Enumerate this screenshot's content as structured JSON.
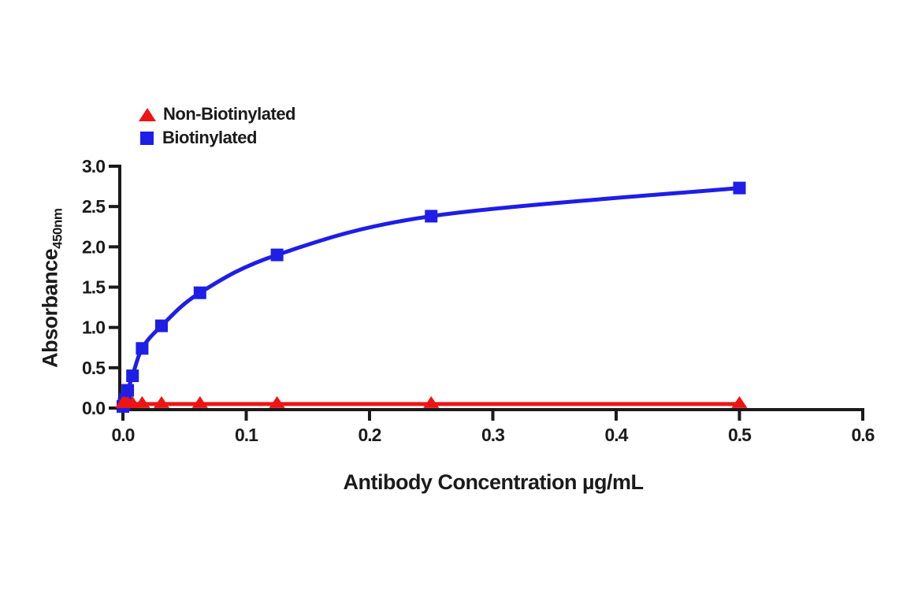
{
  "chart_data": {
    "type": "line",
    "title": "",
    "xlabel": "Antibody Concentration µg/mL",
    "ylabel": "Absorbance",
    "ylabel_subscript": "450nm",
    "xlim": [
      0,
      0.6
    ],
    "ylim": [
      0,
      3.0
    ],
    "x_tick_labels": [
      "0.0",
      "0.1",
      "0.2",
      "0.3",
      "0.4",
      "0.5",
      "0.6"
    ],
    "y_tick_labels": [
      "0.0",
      "0.5",
      "1.0",
      "1.5",
      "2.0",
      "2.5",
      "3.0"
    ],
    "grid": false,
    "legend_position": "top-left",
    "axis_color": "#1a1a1a",
    "series": [
      {
        "name": "Non-Biotinylated",
        "color": "#ee1414",
        "marker": "triangle",
        "points": [
          [
            0,
            0.05
          ],
          [
            0.001,
            0.05
          ],
          [
            0.002,
            0.05
          ],
          [
            0.0039,
            0.05
          ],
          [
            0.0078,
            0.05
          ],
          [
            0.0156,
            0.05
          ],
          [
            0.0313,
            0.05
          ],
          [
            0.0625,
            0.05
          ],
          [
            0.125,
            0.05
          ],
          [
            0.25,
            0.05
          ],
          [
            0.5,
            0.05
          ]
        ]
      },
      {
        "name": "Biotinylated",
        "color": "#1e1ee6",
        "marker": "square",
        "points": [
          [
            0,
            0.02
          ],
          [
            0.001,
            0.05
          ],
          [
            0.002,
            0.11
          ],
          [
            0.0039,
            0.22
          ],
          [
            0.0078,
            0.4
          ],
          [
            0.0156,
            0.74
          ],
          [
            0.0313,
            1.02
          ],
          [
            0.0625,
            1.43
          ],
          [
            0.125,
            1.9
          ],
          [
            0.25,
            2.38
          ],
          [
            0.5,
            2.73
          ]
        ]
      }
    ]
  }
}
